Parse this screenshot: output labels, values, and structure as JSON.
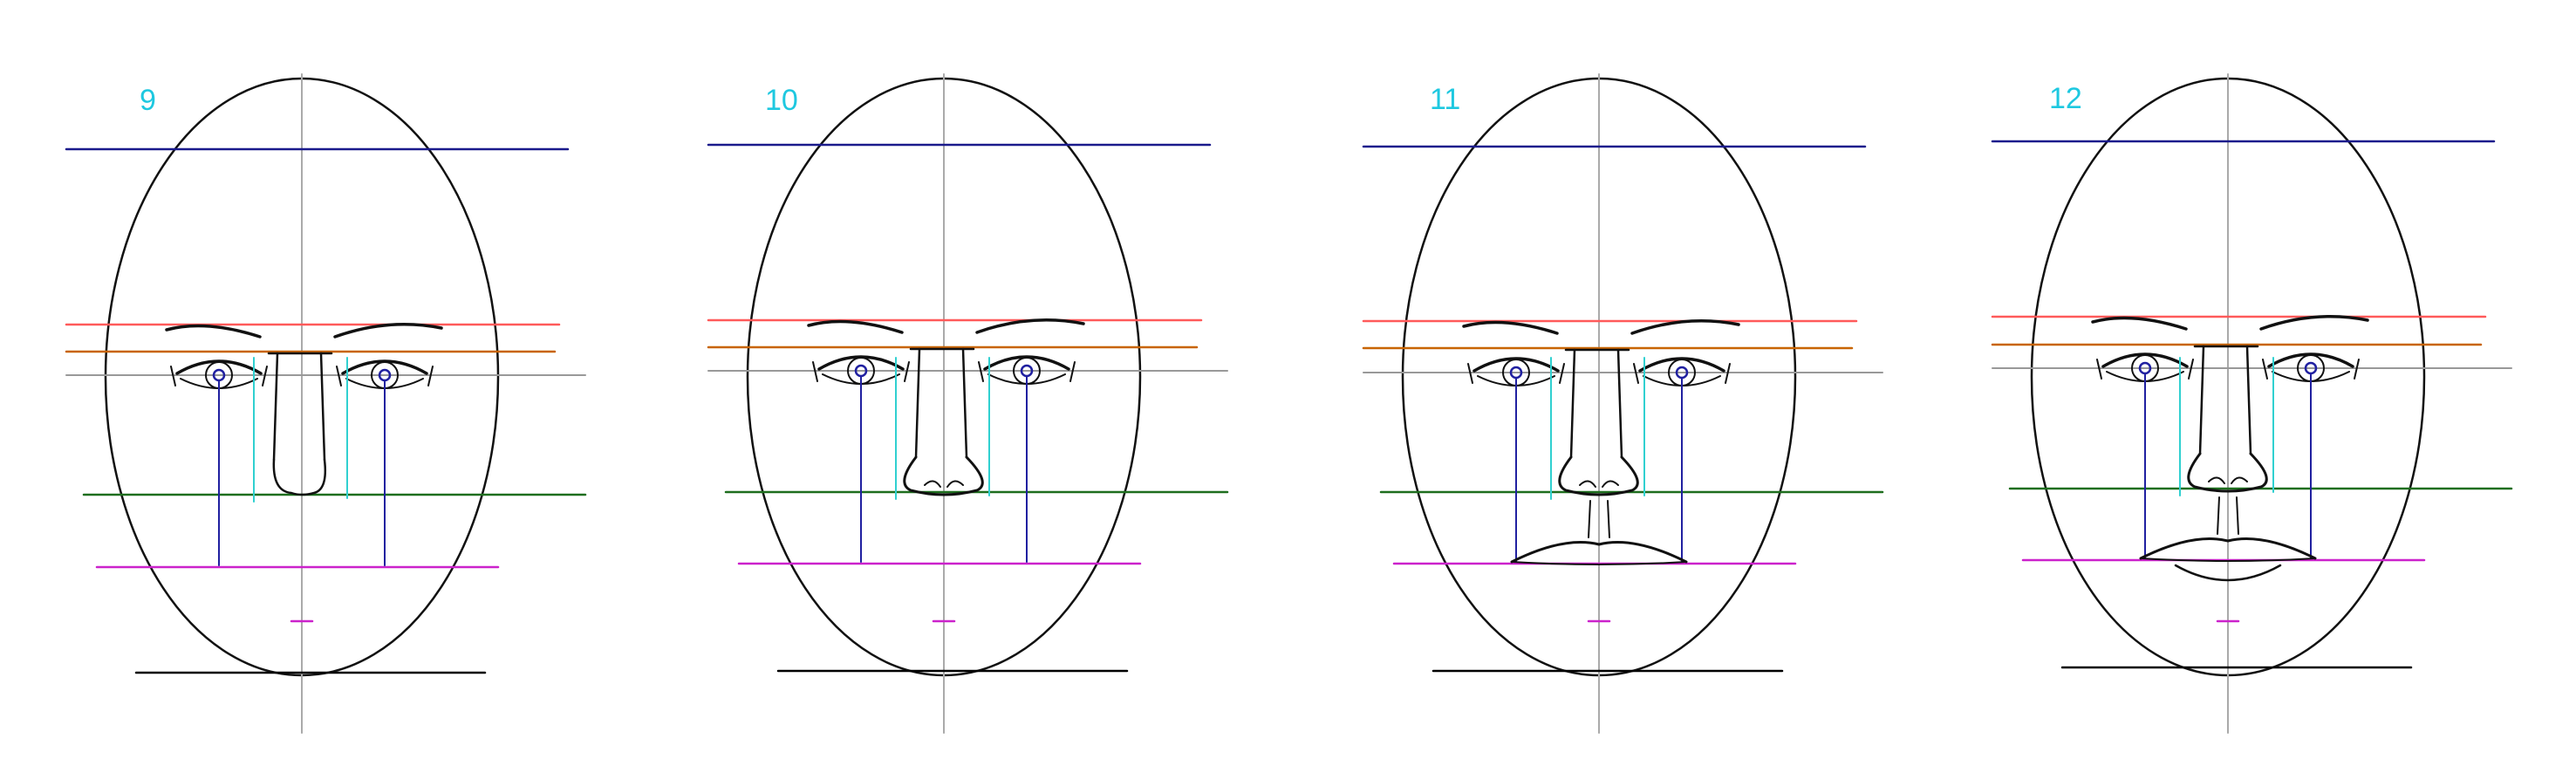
{
  "colors": {
    "step_label": "#1ec8e0",
    "top_guide": "#1a1a8c",
    "brow_top": "#ff5a5a",
    "brow_bottom": "#c86400",
    "eye_line": "#999999",
    "nose_base": "#1e6e1e",
    "mouth_line": "#cc22cc",
    "chin_base": "#000000",
    "pupil_drop": "#2020a0",
    "nose_width": "#30d0d0",
    "center_axis": "#aaaaaa",
    "outline": "#111111"
  },
  "panels": [
    {
      "label": "9",
      "has_nose": true,
      "nose_complete": false,
      "has_upper_lip": false,
      "has_lower_lip": false
    },
    {
      "label": "10",
      "has_nose": true,
      "nose_complete": true,
      "has_upper_lip": false,
      "has_lower_lip": false
    },
    {
      "label": "11",
      "has_nose": true,
      "nose_complete": true,
      "has_upper_lip": true,
      "has_lower_lip": false
    },
    {
      "label": "12",
      "has_nose": true,
      "nose_complete": true,
      "has_upper_lip": true,
      "has_lower_lip": true
    }
  ]
}
